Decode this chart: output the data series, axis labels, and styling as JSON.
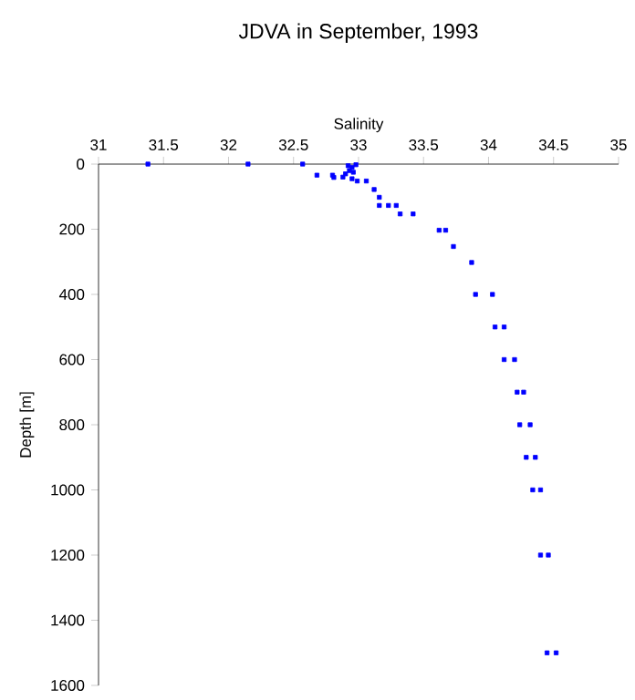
{
  "chart_data": {
    "type": "scatter",
    "title": "JDVA in September, 1993",
    "xlabel": "Salinity",
    "ylabel": "Depth [m]",
    "xlim": [
      31,
      35
    ],
    "xticks": [
      31,
      31.5,
      32,
      32.5,
      33,
      33.5,
      34,
      34.5,
      35
    ],
    "ylim": [
      1600,
      0
    ],
    "yticks": [
      0,
      200,
      400,
      600,
      800,
      1000,
      1200,
      1400,
      1600
    ],
    "grid": false,
    "marker": "square",
    "series": [
      {
        "color": "#0000ff",
        "x": [
          31.38,
          32.15,
          32.57,
          32.98,
          32.92,
          32.95,
          32.93,
          32.96,
          32.9,
          32.68,
          32.8,
          32.81,
          32.88,
          32.95,
          32.99,
          33.06,
          33.12,
          33.16,
          33.16,
          33.23,
          33.29,
          33.32,
          33.42,
          33.62,
          33.67,
          33.73,
          33.87,
          33.9,
          34.03,
          34.05,
          34.12,
          34.12,
          34.2,
          34.22,
          34.27,
          34.24,
          34.32,
          34.29,
          34.36,
          34.34,
          34.4,
          34.4,
          34.46,
          34.45,
          34.52
        ],
        "values": [
          0,
          0,
          0,
          2,
          5,
          10,
          20,
          25,
          30,
          34,
          34,
          41,
          40,
          45,
          52,
          52,
          78,
          102,
          127,
          127,
          127,
          153,
          153,
          203,
          203,
          253,
          302,
          400,
          400,
          500,
          500,
          600,
          600,
          700,
          700,
          800,
          800,
          900,
          900,
          1000,
          1000,
          1200,
          1200,
          1500,
          1500
        ]
      }
    ]
  }
}
